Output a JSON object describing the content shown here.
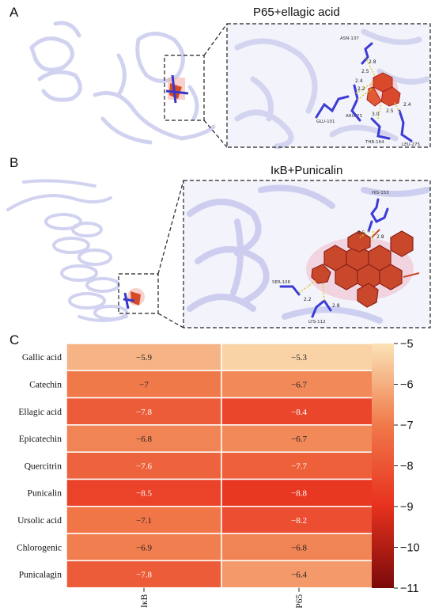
{
  "panels": {
    "a": {
      "letter": "A",
      "title": "P65+ellagic acid",
      "residues": [
        "ASN-137",
        "GLU-101",
        "ARG-73",
        "THR-164",
        "LEU-275"
      ],
      "distances": [
        "2.8",
        "2.5",
        "2.4",
        "2.2",
        "3.0",
        "2.5",
        "2.4"
      ]
    },
    "b": {
      "letter": "B",
      "title": "IκB+Punicalin",
      "residues": [
        "HIS-153",
        "SER-108",
        "LYS-112"
      ],
      "distances": [
        "2.5",
        "2.8",
        "2.2",
        "2.8"
      ]
    },
    "c": {
      "letter": "C"
    }
  },
  "chart_data": {
    "type": "heatmap",
    "columns": [
      "IκB",
      "P65"
    ],
    "rows": [
      "Gallic acid",
      "Catechin",
      "Ellagic acid",
      "Epicatechin",
      "Quercitrin",
      "Punicalin",
      "Ursolic acid",
      "Chlorogenic",
      "Punicalagin"
    ],
    "cell_labels": [
      [
        "−5.9",
        "−5.3"
      ],
      [
        "−7",
        "−6.7"
      ],
      [
        "−7.8",
        "−8.4"
      ],
      [
        "−6.8",
        "−6.7"
      ],
      [
        "−7.6",
        "−7.7"
      ],
      [
        "−8.5",
        "−8.8"
      ],
      [
        "−7.1",
        "−8.2"
      ],
      [
        "−6.9",
        "−6.8"
      ],
      [
        "−7.8",
        "−6.4"
      ]
    ],
    "values": [
      [
        -5.9,
        -5.3
      ],
      [
        -7.0,
        -6.7
      ],
      [
        -7.8,
        -8.4
      ],
      [
        -6.8,
        -6.7
      ],
      [
        -7.6,
        -7.7
      ],
      [
        -8.5,
        -8.8
      ],
      [
        -7.1,
        -8.2
      ],
      [
        -6.9,
        -6.8
      ],
      [
        -7.8,
        -6.4
      ]
    ],
    "colorbar": {
      "min": -11,
      "max": -5,
      "ticks": [
        "−5",
        "−6",
        "−7",
        "−8",
        "−9",
        "−10",
        "−11"
      ],
      "tick_values": [
        -5,
        -6,
        -7,
        -8,
        -9,
        -10,
        -11
      ]
    },
    "colors": {
      "light": "#fbe3b7",
      "mid": "#f07a4a",
      "deep": "#e8321f",
      "dark": "#7a0a0a"
    }
  }
}
